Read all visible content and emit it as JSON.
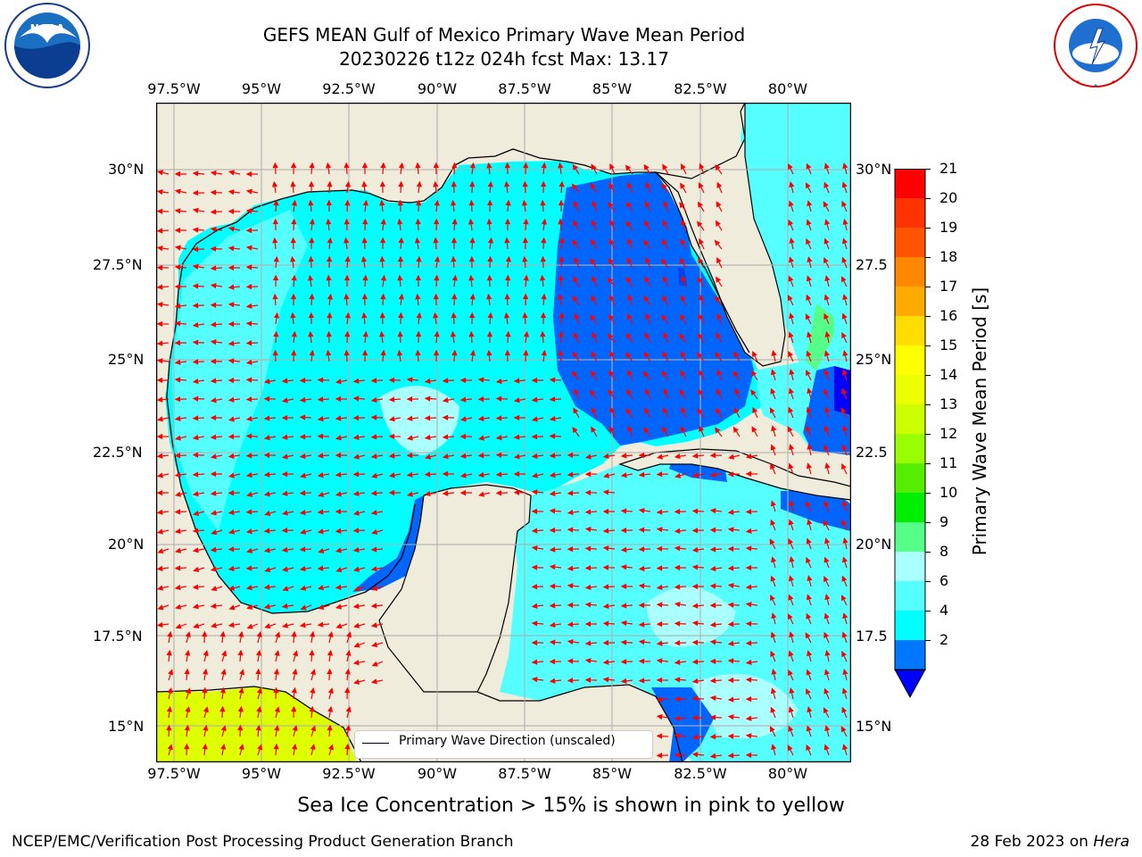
{
  "header": {
    "title_line1": "GEFS MEAN Gulf of Mexico Primary Wave Mean Period",
    "title_line2": "20230226 t12z 024h fcst   Max: 13.17"
  },
  "map": {
    "lon_ticks": [
      "97.5°W",
      "95°W",
      "92.5°W",
      "90°W",
      "87.5°W",
      "85°W",
      "82.5°W",
      "80°W"
    ],
    "lat_ticks": [
      "30°N",
      "27.5°N",
      "25°N",
      "22.5°N",
      "20°N",
      "17.5°N",
      "15°N"
    ],
    "lat_ticks_right": [
      "30°N",
      "27.5",
      "25°N",
      "22.5",
      "20°N",
      "17.5",
      "15°N"
    ],
    "legend_label": "Primary Wave Direction (unscaled)",
    "colors": {
      "land": "#efecdc",
      "deep_blue": "#0066ff",
      "cyan": "#00ffff",
      "light_cyan": "#55ffff",
      "pale_cyan": "#aaffff",
      "arrow": "#ff0000",
      "ice_yellow": "#ddff00"
    }
  },
  "colorbar": {
    "label": "Primary Wave Mean Period [s]",
    "ticks": [
      "21",
      "20",
      "19",
      "18",
      "17",
      "16",
      "15",
      "14",
      "13",
      "12",
      "11",
      "10",
      "9",
      "8",
      "6",
      "4",
      "2"
    ],
    "colors_top_to_bottom": [
      "#ff0000",
      "#ff3300",
      "#ff5500",
      "#ff8800",
      "#ffaa00",
      "#ffdd00",
      "#ffff00",
      "#eeff00",
      "#ccff00",
      "#99ff00",
      "#55ee00",
      "#00ee00",
      "#55ff88",
      "#aaffff",
      "#55ffff",
      "#00ffff",
      "#0077ff"
    ],
    "under_color": "#0000ff"
  },
  "footer": {
    "note": "Sea Ice Concentration > 15% is shown in pink to yellow",
    "branch": "NCEP/EMC/Verification Post Processing Product Generation Branch",
    "date": "28 Feb 2023 on",
    "host": "Hera"
  },
  "logos": {
    "noaa_text": "NOAA",
    "noaa_ring": "NATIONAL OCEANIC AND ATMOSPHERIC ADMINISTRATION · U.S. DEPARTMENT OF COMMERCE",
    "nws_ring": "NATIONAL WEATHER SERVICE"
  }
}
